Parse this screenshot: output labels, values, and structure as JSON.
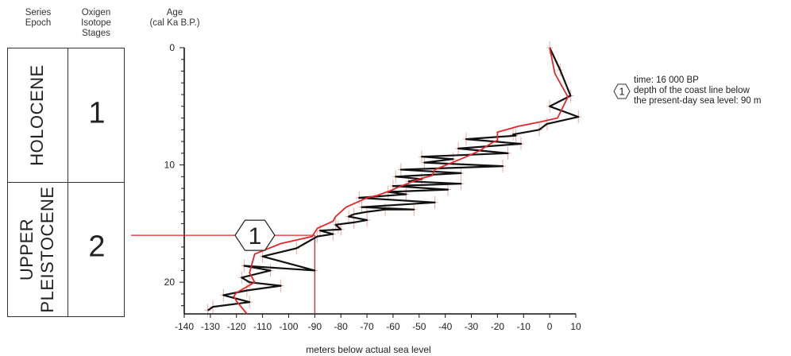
{
  "headers": {
    "series_epoch": [
      "Series",
      "Epoch"
    ],
    "isotope_stages": [
      "Oxigen",
      "Isotope",
      "Stages"
    ],
    "age": [
      "Age",
      "(cal Ka B.P.)"
    ]
  },
  "strat_table": {
    "holocene": "HOLOCENE",
    "upper_pleistocene": [
      "UPPER",
      "PLEISTOCENE"
    ],
    "stage_1": "1",
    "stage_2": "2"
  },
  "marker": {
    "label": "1",
    "age": 16,
    "depth": -90
  },
  "note": {
    "symbol": "1",
    "lines": [
      "time: 16 000 BP",
      "depth of the coast line below",
      "the present-day sea level: 90 m"
    ]
  },
  "colors": {
    "black_series": "#111111",
    "red_series": "#e3262a",
    "error_bars": "#f0a9a0"
  },
  "chart_data": {
    "type": "line",
    "xlabel": "meters below actual sea level",
    "ylabel": "Age (cal Ka B.P.)",
    "xlim": [
      -140,
      10
    ],
    "ylim": [
      0,
      22.7
    ],
    "y_inverted": true,
    "x_ticks": [
      -140,
      -130,
      -120,
      -110,
      -100,
      -90,
      -80,
      -70,
      -60,
      -50,
      -40,
      -30,
      -20,
      -10,
      0,
      10
    ],
    "y_ticks": [
      0,
      10,
      20
    ],
    "series": [
      {
        "color": "black",
        "x": [
          0,
          4,
          8,
          0,
          11,
          -1,
          -4,
          -14,
          -13,
          -32,
          -11,
          -35,
          -16,
          -49,
          -37,
          -48,
          -18,
          -57,
          -34,
          -59,
          -49,
          -54,
          -34,
          -60,
          -39,
          -62,
          -55,
          -73,
          -44,
          -72,
          -52,
          -63,
          -70,
          -75,
          -77,
          -70,
          -75,
          -82,
          -81,
          -80,
          -88,
          -83,
          -89,
          -97,
          -110,
          -90,
          -117,
          -107,
          -118,
          -115,
          -103,
          -116,
          -125,
          -115,
          -129,
          -131
        ],
        "y": [
          0,
          1.9,
          4.1,
          5.0,
          5.9,
          6.5,
          7.0,
          7.4,
          7.5,
          7.8,
          8.2,
          8.6,
          9.0,
          9.3,
          9.5,
          9.8,
          10.1,
          10.4,
          10.7,
          11.0,
          11.2,
          11.4,
          11.6,
          11.8,
          12.1,
          12.3,
          12.5,
          12.8,
          13.2,
          13.6,
          13.8,
          13.8,
          14.0,
          14.2,
          14.4,
          14.7,
          14.9,
          15.1,
          15.3,
          15.5,
          15.6,
          15.9,
          16.1,
          17.1,
          17.8,
          19.0,
          18.6,
          19.0,
          19.6,
          20.0,
          20.3,
          20.7,
          21.1,
          21.7,
          22.1,
          22.4
        ]
      },
      {
        "color": "red",
        "x": [
          0,
          2,
          7,
          3,
          -3,
          -12,
          -20,
          -20,
          -22,
          -27,
          -33,
          -44,
          -45,
          -50,
          -58,
          -61,
          -66,
          -70,
          -78,
          -82,
          -83,
          -89,
          -91,
          -103,
          -113,
          -115,
          -113,
          -120,
          -121,
          -120,
          -116
        ],
        "y": [
          0,
          2.2,
          4.2,
          6.0,
          6.3,
          6.7,
          7.2,
          7.9,
          8.1,
          8.8,
          9.4,
          10.4,
          10.9,
          11.2,
          11.9,
          12.2,
          12.6,
          12.8,
          13.6,
          14.4,
          14.8,
          15.4,
          16.1,
          16.7,
          17.6,
          19.2,
          20.0,
          20.9,
          21.2,
          21.6,
          22.7
        ]
      }
    ]
  }
}
